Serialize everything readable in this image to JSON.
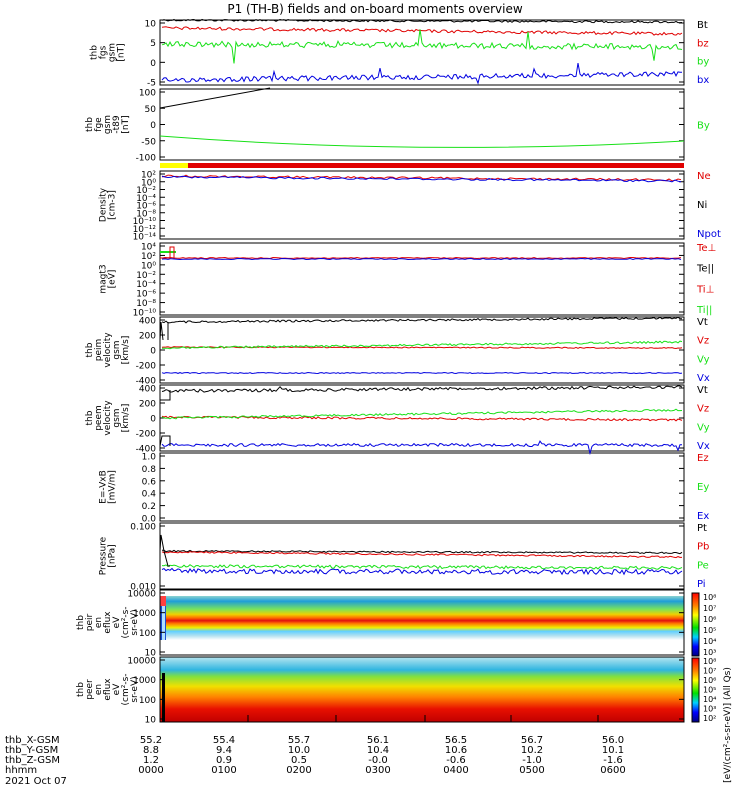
{
  "title": "P1 (TH-B) fields and on-board moments overview",
  "colors": {
    "black": "#000000",
    "red": "#e00000",
    "green": "#18e018",
    "blue": "#0000e0",
    "yellow": "#ffff00"
  },
  "chart_data": [
    {
      "type": "line",
      "ylabel": [
        "thb",
        "fgs",
        "gsm",
        "[nT]"
      ],
      "yticks": [
        "10",
        "5",
        "0",
        "-5"
      ],
      "ylim": [
        -6,
        11
      ],
      "series": [
        {
          "name": "Bt",
          "color": "#000000",
          "level": 9.5
        },
        {
          "name": "bz",
          "color": "#e00000",
          "level": 7.5
        },
        {
          "name": "by",
          "color": "#18e018",
          "level": 2.5
        },
        {
          "name": "bx",
          "color": "#0000e0",
          "level": -4
        }
      ]
    },
    {
      "type": "line",
      "ylabel": [
        "thb",
        "fge",
        "gsm",
        "-t89",
        "[nT]"
      ],
      "yticks": [
        "100",
        "50",
        "0",
        "-50",
        "-100"
      ],
      "ylim": [
        -130,
        105
      ],
      "series": [
        {
          "name": "By",
          "color": "#18e018",
          "level": -70
        }
      ]
    },
    {
      "type": "line",
      "ylabel": [
        "Density",
        "[cm-3]"
      ],
      "yticks": [
        "10²",
        "10⁰",
        "10⁻²",
        "10⁻⁴",
        "10⁻⁶",
        "10⁻⁸",
        "10⁻¹⁰",
        "10⁻¹²",
        "10⁻¹⁴"
      ],
      "log": true,
      "series": [
        {
          "name": "Ne",
          "color": "#e00000"
        },
        {
          "name": "Ni",
          "color": "#000000"
        },
        {
          "name": "Npot",
          "color": "#0000e0"
        }
      ]
    },
    {
      "type": "line",
      "ylabel": [
        "magt3",
        "[eV]"
      ],
      "yticks": [
        "10⁴",
        "10²",
        "10⁰",
        "10⁻²",
        "10⁻⁴",
        "10⁻⁶",
        "10⁻⁸",
        "10⁻¹⁰"
      ],
      "log": true,
      "series": [
        {
          "name": "Te⊥",
          "color": "#e00000"
        },
        {
          "name": "Te||",
          "color": "#000000"
        },
        {
          "name": "Ti⊥",
          "color": "#e00000"
        },
        {
          "name": "Ti||",
          "color": "#18e018"
        }
      ]
    },
    {
      "type": "line",
      "ylabel": [
        "thb",
        "peim",
        "velocity",
        "gsm",
        "[km/s]"
      ],
      "yticks": [
        "400",
        "200",
        "0",
        "-200",
        "-400"
      ],
      "ylim": [
        -400,
        400
      ],
      "series": [
        {
          "name": "Vt",
          "color": "#000000"
        },
        {
          "name": "Vz",
          "color": "#e00000"
        },
        {
          "name": "Vy",
          "color": "#18e018"
        },
        {
          "name": "Vx",
          "color": "#0000e0"
        }
      ]
    },
    {
      "type": "line",
      "ylabel": [
        "thb",
        "peem",
        "velocity",
        "gsm",
        "[km/s]"
      ],
      "yticks": [
        "400",
        "200",
        "0",
        "-200",
        "-400"
      ],
      "ylim": [
        -400,
        400
      ],
      "series": [
        {
          "name": "Vt",
          "color": "#000000"
        },
        {
          "name": "Vz",
          "color": "#e00000"
        },
        {
          "name": "Vy",
          "color": "#18e018"
        },
        {
          "name": "Vx",
          "color": "#0000e0"
        }
      ]
    },
    {
      "type": "line",
      "ylabel": [
        "E=-VxB",
        "[mV/m]"
      ],
      "yticks": [
        "1.0",
        "0.8",
        "0.6",
        "0.4",
        "0.2",
        "0.0"
      ],
      "ylim": [
        0,
        1
      ],
      "series": [
        {
          "name": "Ez",
          "color": "#e00000"
        },
        {
          "name": "Ey",
          "color": "#18e018"
        },
        {
          "name": "Ex",
          "color": "#0000e0"
        }
      ]
    },
    {
      "type": "line",
      "ylabel": [
        "Pressure",
        "[nPa]"
      ],
      "yticks": [
        "0.100",
        "0.010"
      ],
      "log": true,
      "series": [
        {
          "name": "Pt",
          "color": "#000000"
        },
        {
          "name": "Pb",
          "color": "#e00000"
        },
        {
          "name": "Pe",
          "color": "#18e018"
        },
        {
          "name": "Pi",
          "color": "#0000e0"
        }
      ]
    },
    {
      "type": "heatmap",
      "ylabel": [
        "thb",
        "peir",
        "en",
        "eflux",
        "eV",
        "(cm²-s-",
        "sr-eV)"
      ],
      "yticks": [
        "10000",
        "1000",
        "100",
        "10"
      ],
      "log": true
    },
    {
      "type": "heatmap",
      "ylabel": [
        "thb",
        "peer",
        "en",
        "eflux",
        "eV",
        "(cm²-s-",
        "sr-eV)"
      ],
      "yticks": [
        "10000",
        "1000",
        "100",
        "10"
      ],
      "log": true
    }
  ],
  "colorbar": {
    "label": "[eV/(cm²-s-sr-eV)] (All Qs)",
    "ticks_top": [
      "10⁸",
      "10⁷",
      "10⁶",
      "10⁵",
      "10⁴",
      "10³"
    ],
    "ticks_bottom": [
      "10⁸",
      "10⁷",
      "10⁶",
      "10⁵",
      "10⁴",
      "10³",
      "10²"
    ]
  },
  "footer": {
    "rows": [
      {
        "label": "thb_X-GSM",
        "values": [
          "55.2",
          "55.4",
          "55.7",
          "56.1",
          "56.5",
          "56.7",
          "56.0"
        ]
      },
      {
        "label": "thb_Y-GSM",
        "values": [
          "8.8",
          "9.4",
          "10.0",
          "10.4",
          "10.6",
          "10.2",
          "10.1"
        ]
      },
      {
        "label": "thb_Z-GSM",
        "values": [
          "1.2",
          "0.9",
          "0.5",
          "-0.0",
          "-0.6",
          "-1.0",
          "-1.6"
        ]
      },
      {
        "label": "hhmm",
        "values": [
          "0000",
          "0100",
          "0200",
          "0300",
          "0400",
          "0500",
          "0600"
        ]
      }
    ],
    "date": "2021 Oct 07"
  }
}
